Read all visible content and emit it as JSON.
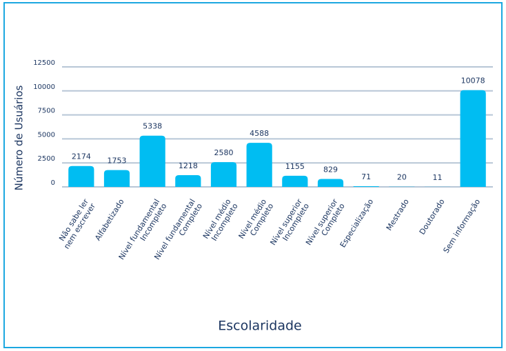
{
  "chart_data": {
    "type": "bar",
    "x_label": "Escolaridade",
    "y_label": "Número de Usuários",
    "categories": [
      [
        "Não sabe ler",
        "nem escrever"
      ],
      [
        "Alfabetizado"
      ],
      [
        "Nível fundamental",
        "Incompleto"
      ],
      [
        "Nível fundamental",
        "Completo"
      ],
      [
        "Nível médio",
        "Incompleto"
      ],
      [
        "Nível médio",
        "Completo"
      ],
      [
        "Nível superior",
        "Incompleto"
      ],
      [
        "Nível superior",
        "Completo"
      ],
      [
        "Especialização"
      ],
      [
        "Mestrado"
      ],
      [
        "Doutorado"
      ],
      [
        "Sem informação"
      ]
    ],
    "values": [
      2174,
      1753,
      5338,
      1218,
      2580,
      4588,
      1155,
      829,
      71,
      20,
      11,
      10078
    ],
    "color": "#00bdf2",
    "ylim": [
      0,
      12500
    ],
    "yticks": [
      0,
      2500,
      5000,
      7500,
      10000,
      12500
    ],
    "grid": true
  }
}
